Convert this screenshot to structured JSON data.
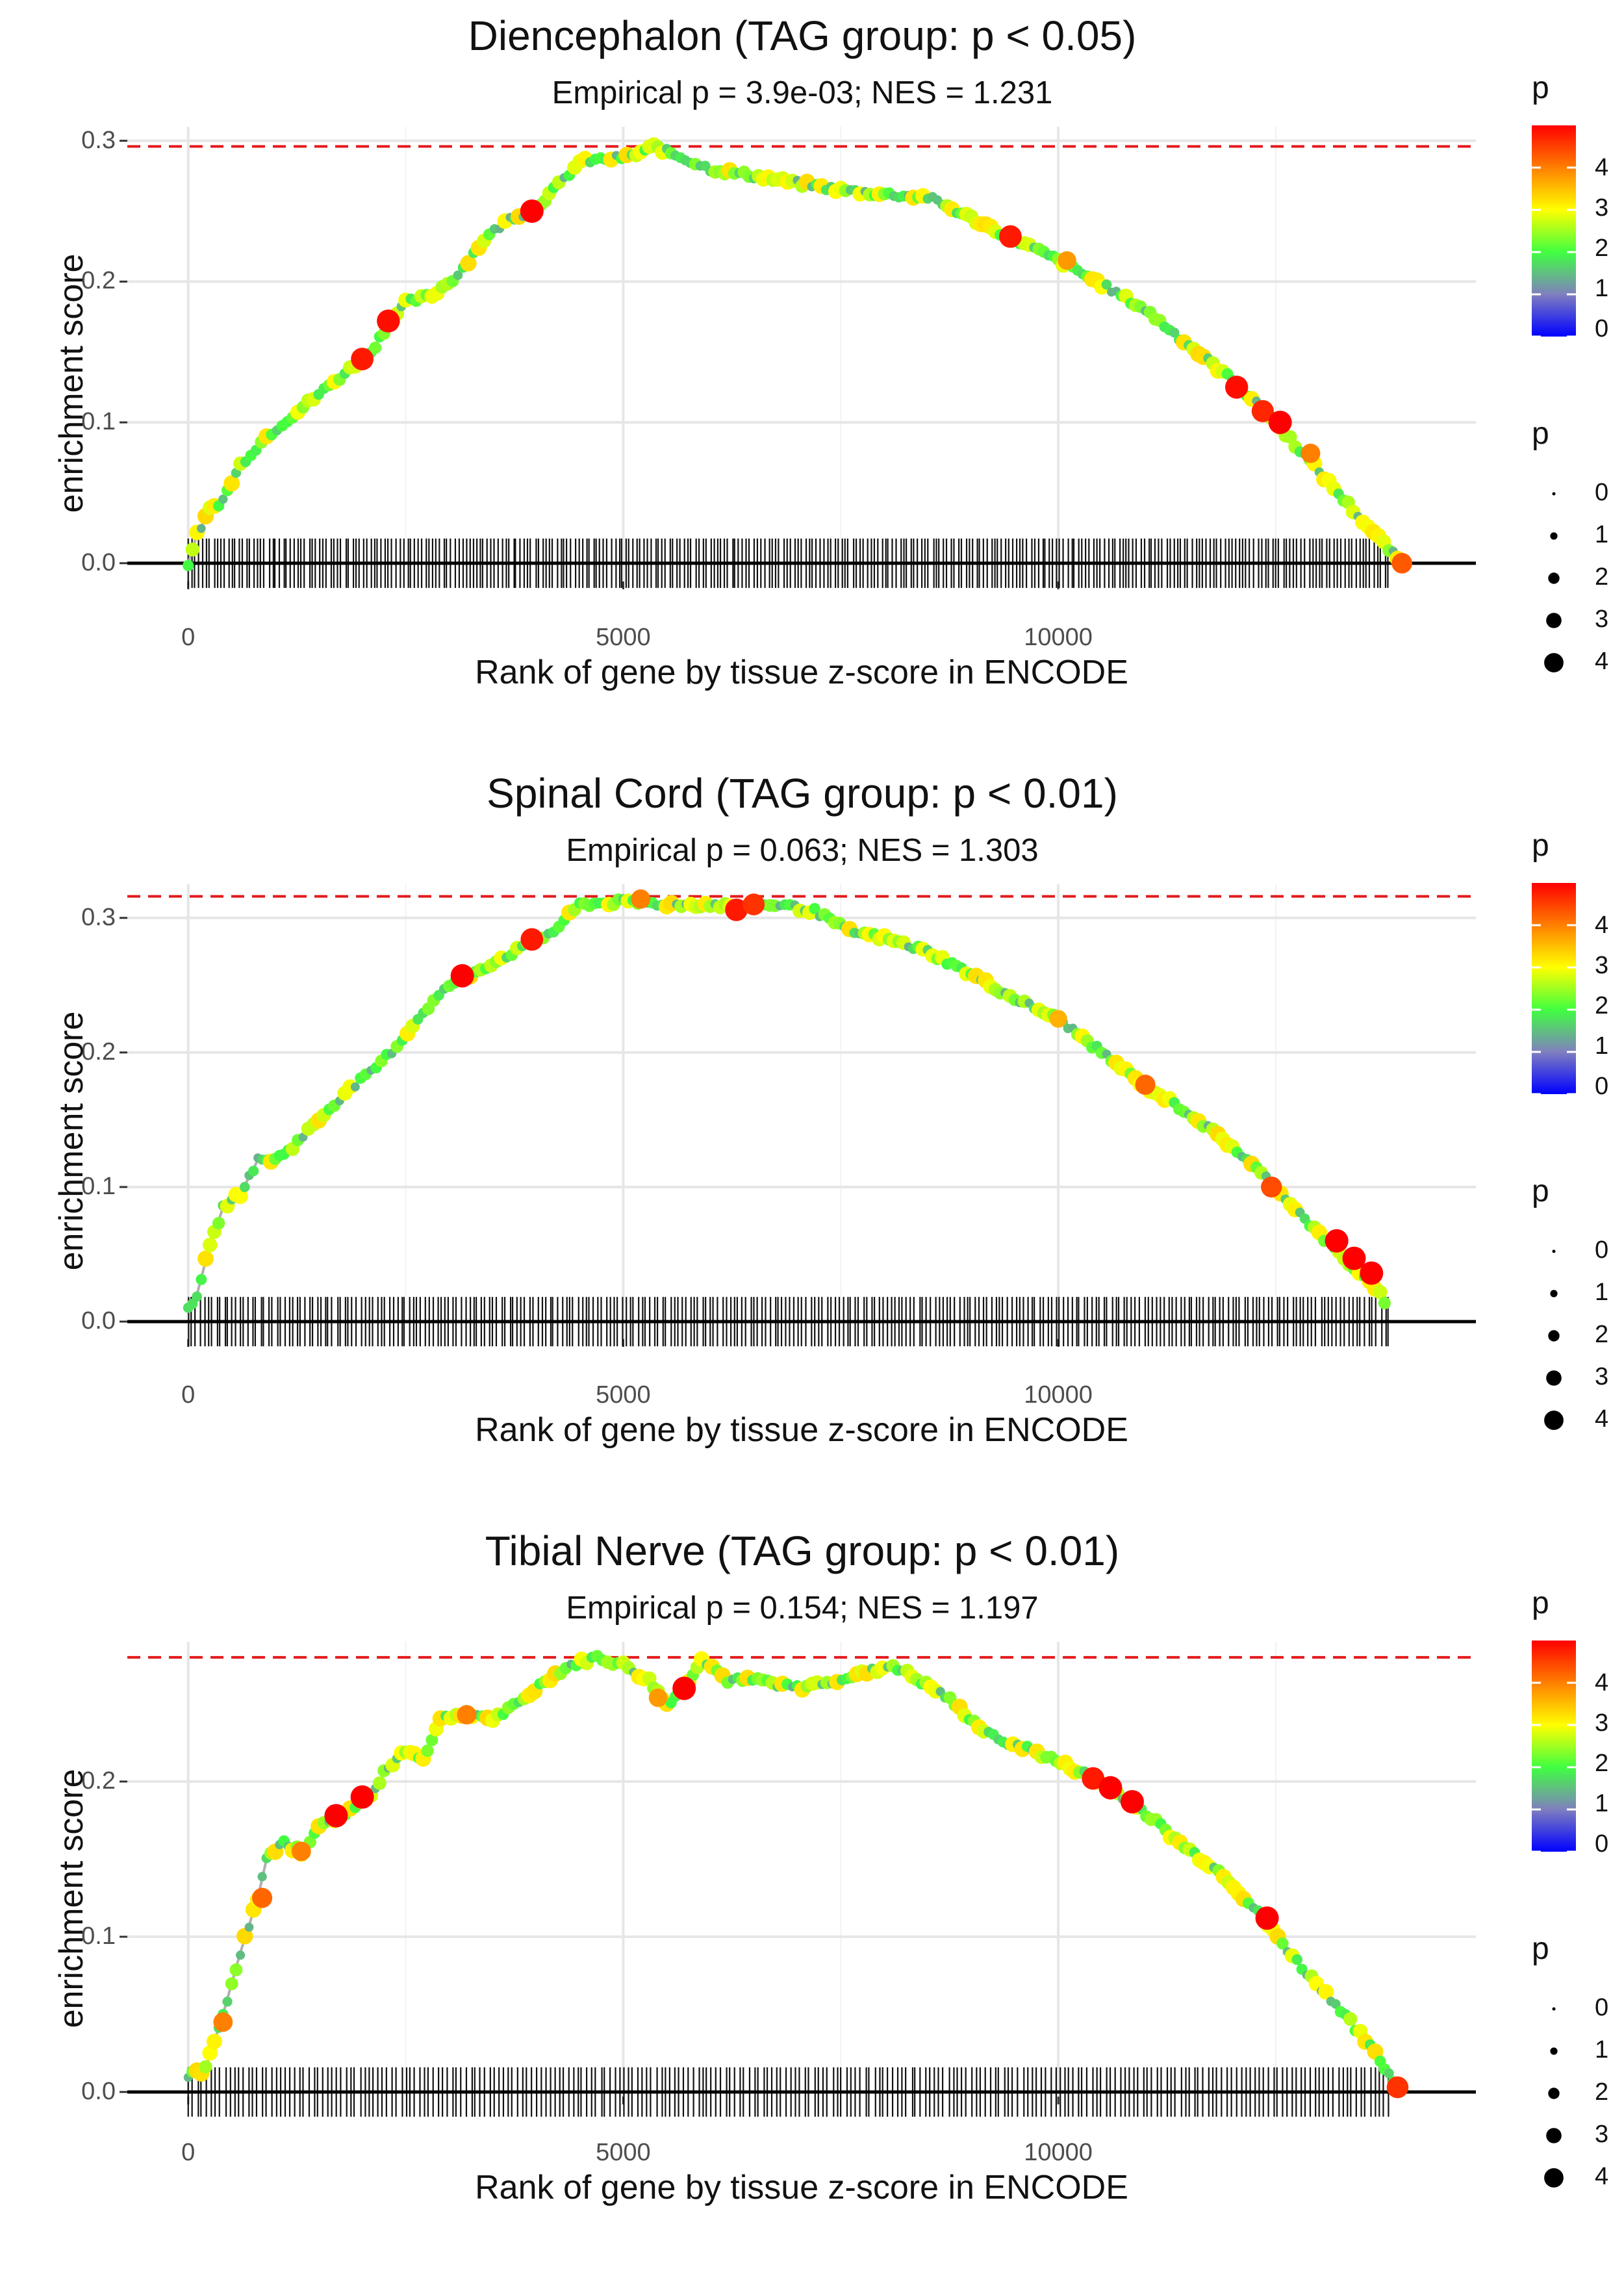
{
  "figure": {
    "x_label": "Rank of gene by tissue z-score in ENCODE",
    "y_label": "enrichment score",
    "color_legend_title": "p",
    "size_legend_title": "p",
    "color_legend_ticks": [
      "4",
      "3",
      "2",
      "1",
      "0"
    ],
    "size_legend_ticks": [
      "0",
      "1",
      "2",
      "3",
      "4"
    ],
    "x_ticks": [
      "0",
      "5000",
      "10000"
    ],
    "max_line_color": "#e31a1c",
    "curve_color": "#b0b0b0",
    "gradient_colors": [
      "#0000ff",
      "#7f7fbf",
      "#40ff40",
      "#ffff00",
      "#ff7f00",
      "#ff0000"
    ]
  },
  "chart_data": [
    {
      "type": "line",
      "title": "Diencephalon (TAG group: p < 0.05)",
      "subtitle": "Empirical p = 3.9e-03; NES = 1.231",
      "xlabel": "Rank of gene by tissue z-score in ENCODE",
      "ylabel": "enrichment score",
      "xlim": [
        -700,
        14800
      ],
      "ylim": [
        -0.013,
        0.31
      ],
      "y_ticks": [
        0.0,
        0.1,
        0.2,
        0.3
      ],
      "y_tick_labels": [
        "0.0",
        "0.1",
        "0.2",
        "0.3"
      ],
      "max_es": 0.296,
      "curve": [
        [
          0,
          0.0
        ],
        [
          100,
          0.02
        ],
        [
          250,
          0.038
        ],
        [
          400,
          0.045
        ],
        [
          600,
          0.07
        ],
        [
          900,
          0.09
        ],
        [
          1200,
          0.105
        ],
        [
          1500,
          0.12
        ],
        [
          1800,
          0.135
        ],
        [
          2100,
          0.15
        ],
        [
          2300,
          0.17
        ],
        [
          2500,
          0.185
        ],
        [
          2800,
          0.19
        ],
        [
          3100,
          0.205
        ],
        [
          3400,
          0.23
        ],
        [
          3700,
          0.245
        ],
        [
          3950,
          0.25
        ],
        [
          4200,
          0.265
        ],
        [
          4500,
          0.285
        ],
        [
          4800,
          0.287
        ],
        [
          5100,
          0.289
        ],
        [
          5350,
          0.296
        ],
        [
          5600,
          0.29
        ],
        [
          6000,
          0.28
        ],
        [
          6500,
          0.275
        ],
        [
          7000,
          0.27
        ],
        [
          7500,
          0.265
        ],
        [
          8000,
          0.262
        ],
        [
          8500,
          0.26
        ],
        [
          9000,
          0.245
        ],
        [
          9500,
          0.23
        ],
        [
          10000,
          0.215
        ],
        [
          10500,
          0.198
        ],
        [
          11000,
          0.18
        ],
        [
          11500,
          0.155
        ],
        [
          12000,
          0.13
        ],
        [
          12500,
          0.1
        ],
        [
          13000,
          0.065
        ],
        [
          13500,
          0.03
        ],
        [
          13800,
          0.01
        ],
        [
          13950,
          0.0
        ]
      ],
      "highlights": [
        [
          2000,
          0.145,
          4.8
        ],
        [
          2300,
          0.172,
          4.9
        ],
        [
          3950,
          0.25,
          5.0
        ],
        [
          9450,
          0.232,
          4.8
        ],
        [
          10100,
          0.215,
          3.8
        ],
        [
          12050,
          0.125,
          4.9
        ],
        [
          12350,
          0.108,
          4.7
        ],
        [
          12550,
          0.1,
          5.0
        ],
        [
          12900,
          0.078,
          4.0
        ],
        [
          13950,
          0.0,
          4.3
        ]
      ],
      "hits": 330,
      "hits_end": 13800
    },
    {
      "type": "line",
      "title": "Spinal Cord (TAG group: p < 0.01)",
      "subtitle": "Empirical p = 0.063; NES = 1.303",
      "xlabel": "Rank of gene by tissue z-score in ENCODE",
      "ylabel": "enrichment score",
      "xlim": [
        -700,
        14800
      ],
      "ylim": [
        -0.013,
        0.325
      ],
      "y_ticks": [
        0.0,
        0.1,
        0.2,
        0.3
      ],
      "y_tick_labels": [
        "0.0",
        "0.1",
        "0.2",
        "0.3"
      ],
      "max_es": 0.316,
      "curve": [
        [
          0,
          0.01
        ],
        [
          100,
          0.02
        ],
        [
          200,
          0.045
        ],
        [
          300,
          0.065
        ],
        [
          400,
          0.085
        ],
        [
          600,
          0.095
        ],
        [
          800,
          0.12
        ],
        [
          1000,
          0.12
        ],
        [
          1200,
          0.13
        ],
        [
          1500,
          0.15
        ],
        [
          1800,
          0.17
        ],
        [
          2100,
          0.185
        ],
        [
          2400,
          0.205
        ],
        [
          2700,
          0.23
        ],
        [
          3000,
          0.25
        ],
        [
          3300,
          0.26
        ],
        [
          3600,
          0.27
        ],
        [
          3900,
          0.28
        ],
        [
          4200,
          0.29
        ],
        [
          4500,
          0.31
        ],
        [
          5000,
          0.312
        ],
        [
          5500,
          0.31
        ],
        [
          6000,
          0.31
        ],
        [
          6400,
          0.308
        ],
        [
          6800,
          0.31
        ],
        [
          7200,
          0.305
        ],
        [
          7600,
          0.29
        ],
        [
          8000,
          0.285
        ],
        [
          8500,
          0.275
        ],
        [
          9000,
          0.258
        ],
        [
          9500,
          0.24
        ],
        [
          10000,
          0.225
        ],
        [
          10500,
          0.2
        ],
        [
          11000,
          0.175
        ],
        [
          11500,
          0.155
        ],
        [
          12000,
          0.13
        ],
        [
          12500,
          0.1
        ],
        [
          13000,
          0.065
        ],
        [
          13400,
          0.04
        ],
        [
          13700,
          0.02
        ],
        [
          13800,
          0.01
        ]
      ],
      "highlights": [
        [
          3150,
          0.257,
          5.0
        ],
        [
          3950,
          0.284,
          4.8
        ],
        [
          5200,
          0.314,
          4.0
        ],
        [
          6300,
          0.306,
          4.8
        ],
        [
          6500,
          0.31,
          4.6
        ],
        [
          10000,
          0.225,
          3.6
        ],
        [
          11000,
          0.176,
          4.2
        ],
        [
          12450,
          0.1,
          4.4
        ],
        [
          13200,
          0.06,
          5.0
        ],
        [
          13400,
          0.047,
          5.0
        ],
        [
          13600,
          0.036,
          5.0
        ]
      ],
      "hits": 300,
      "hits_end": 13800
    },
    {
      "type": "line",
      "title": "Tibial Nerve (TAG group: p < 0.01)",
      "subtitle": "Empirical p = 0.154; NES = 1.197",
      "xlabel": "Rank of gene by tissue z-score in ENCODE",
      "ylabel": "enrichment score",
      "xlim": [
        -700,
        14800
      ],
      "ylim": [
        -0.003,
        0.29
      ],
      "y_ticks": [
        0.0,
        0.1,
        0.2
      ],
      "y_tick_labels": [
        "0.0",
        "0.1",
        "0.2"
      ],
      "max_es": 0.28,
      "curve": [
        [
          0,
          0.01
        ],
        [
          200,
          0.015
        ],
        [
          400,
          0.05
        ],
        [
          600,
          0.09
        ],
        [
          800,
          0.125
        ],
        [
          900,
          0.15
        ],
        [
          1100,
          0.16
        ],
        [
          1300,
          0.155
        ],
        [
          1500,
          0.17
        ],
        [
          1800,
          0.18
        ],
        [
          2100,
          0.19
        ],
        [
          2300,
          0.21
        ],
        [
          2500,
          0.22
        ],
        [
          2700,
          0.215
        ],
        [
          2900,
          0.24
        ],
        [
          3200,
          0.245
        ],
        [
          3500,
          0.24
        ],
        [
          3800,
          0.25
        ],
        [
          4100,
          0.265
        ],
        [
          4400,
          0.275
        ],
        [
          4700,
          0.28
        ],
        [
          5000,
          0.275
        ],
        [
          5300,
          0.265
        ],
        [
          5500,
          0.25
        ],
        [
          5700,
          0.26
        ],
        [
          5900,
          0.28
        ],
        [
          6200,
          0.265
        ],
        [
          6600,
          0.265
        ],
        [
          7000,
          0.26
        ],
        [
          7400,
          0.265
        ],
        [
          7800,
          0.27
        ],
        [
          8100,
          0.275
        ],
        [
          8700,
          0.255
        ],
        [
          9200,
          0.23
        ],
        [
          9700,
          0.22
        ],
        [
          10300,
          0.205
        ],
        [
          10900,
          0.185
        ],
        [
          11400,
          0.16
        ],
        [
          11900,
          0.14
        ],
        [
          12300,
          0.115
        ],
        [
          12800,
          0.08
        ],
        [
          13300,
          0.05
        ],
        [
          13700,
          0.02
        ],
        [
          13900,
          0.003
        ]
      ],
      "highlights": [
        [
          400,
          0.045,
          4.0
        ],
        [
          850,
          0.125,
          4.2
        ],
        [
          1300,
          0.155,
          4.0
        ],
        [
          1700,
          0.178,
          5.0
        ],
        [
          2000,
          0.19,
          5.0
        ],
        [
          3200,
          0.243,
          4.0
        ],
        [
          5400,
          0.254,
          3.8
        ],
        [
          5700,
          0.26,
          5.0
        ],
        [
          10400,
          0.202,
          4.8
        ],
        [
          10600,
          0.196,
          5.0
        ],
        [
          10850,
          0.187,
          5.0
        ],
        [
          12400,
          0.112,
          5.0
        ],
        [
          13900,
          0.003,
          4.6
        ]
      ],
      "hits": 260,
      "hits_end": 13800
    }
  ]
}
